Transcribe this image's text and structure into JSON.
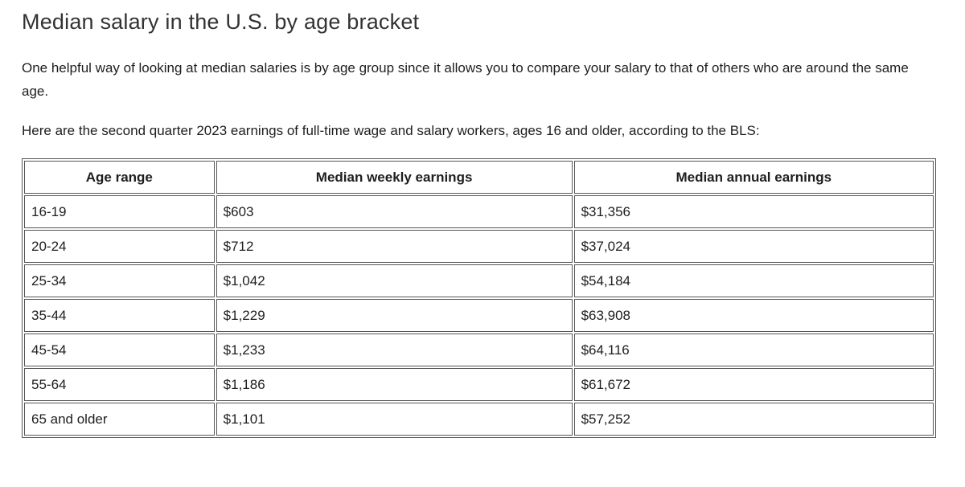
{
  "page": {
    "title": "Median salary in the U.S. by age bracket",
    "intro_paragraph": "One helpful way of looking at median salaries is by age group since it allows you to compare your salary to that of others who are around the same age.",
    "lead_in_paragraph": "Here are the second quarter 2023 earnings of full-time wage and salary workers, ages 16 and older, according to the BLS:"
  },
  "table": {
    "headers": [
      "Age range",
      "Median weekly earnings",
      "Median annual earnings"
    ],
    "rows": [
      {
        "age": "16-19",
        "weekly": "$603",
        "annual": "$31,356"
      },
      {
        "age": "20-24",
        "weekly": "$712",
        "annual": "$37,024"
      },
      {
        "age": "25-34",
        "weekly": "$1,042",
        "annual": "$54,184"
      },
      {
        "age": "35-44",
        "weekly": "$1,229",
        "annual": "$63,908"
      },
      {
        "age": "45-54",
        "weekly": "$1,233",
        "annual": "$64,116"
      },
      {
        "age": "55-64",
        "weekly": "$1,186",
        "annual": "$61,672"
      },
      {
        "age": "65 and older",
        "weekly": "$1,101",
        "annual": "$57,252"
      }
    ]
  },
  "colors": {
    "background": "#ffffff",
    "text": "#1e1e1e",
    "title": "#333333",
    "table_border": "#565656"
  }
}
